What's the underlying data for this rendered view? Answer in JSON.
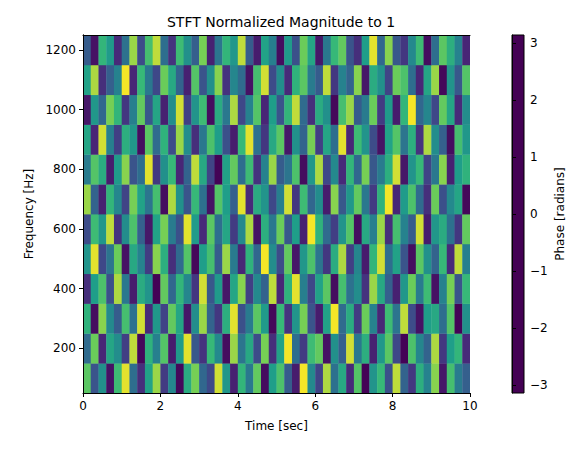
{
  "chart_data": {
    "type": "heatmap",
    "title": "STFT Normalized Magnitude to 1",
    "x_label": "Time [sec]",
    "y_label": "Frequency [Hz]",
    "xlim": [
      0,
      10
    ],
    "xticks": [
      0,
      2,
      4,
      6,
      8,
      10
    ],
    "ylim": [
      50,
      1250
    ],
    "yticks": [
      200,
      400,
      600,
      800,
      1000,
      1200
    ],
    "x_edges": [
      0,
      0.2,
      0.4,
      0.6,
      0.8,
      1,
      1.2,
      1.4,
      1.6,
      1.8,
      2,
      2.2,
      2.4,
      2.6,
      2.8,
      3,
      3.2,
      3.4,
      3.6,
      3.8,
      4,
      4.2,
      4.4,
      4.6,
      4.8,
      5,
      5.2,
      5.4,
      5.6,
      5.8,
      6,
      6.2,
      6.4,
      6.6,
      6.8,
      7,
      7.2,
      7.4,
      7.6,
      7.8,
      8,
      8.2,
      8.4,
      8.6,
      8.8,
      9,
      9.2,
      9.4,
      9.6,
      9.8,
      10
    ],
    "y_edges": [
      50,
      150,
      250,
      350,
      450,
      550,
      650,
      750,
      850,
      950,
      1050,
      1150,
      1250
    ],
    "cells": [
      [
        2.1,
        -1.3,
        0.4,
        -2.8,
        1.7,
        3.0,
        -0.6,
        -2.2,
        0.9,
        2.6,
        -1.9,
        0.1,
        -3.0,
        1.2,
        2.4,
        -0.8,
        -1.6,
        2.9,
        0.6,
        -2.5,
        1.5,
        -0.3,
        2.2,
        -2.9,
        0.8,
        1.9,
        -1.1,
        -2.6,
        3.1,
        0.2,
        -1.7,
        2.7,
        -0.5,
        1.1,
        -2.3,
        2.0,
        -3.1,
        0.5,
        1.6,
        -1.4,
        2.8,
        -0.9,
        -2.0,
        1.3,
        0.0,
        2.5,
        -2.7,
        1.8,
        -0.2,
        -1.0
      ],
      [
        -0.7,
        2.3,
        -2.4,
        1.0,
        0.3,
        -1.8,
        2.8,
        -3.0,
        1.4,
        -0.1,
        2.0,
        -2.6,
        0.7,
        3.0,
        -1.2,
        -2.1,
        1.6,
        0.2,
        -2.9,
        2.6,
        -0.4,
        1.1,
        -1.5,
        2.4,
        -2.2,
        0.9,
        3.1,
        -0.6,
        -1.9,
        1.7,
        2.2,
        -2.8,
        0.4,
        -1.0,
        2.9,
        -0.3,
        1.3,
        -2.5,
        0.6,
        2.1,
        -1.6,
        -3.1,
        1.9,
        0.1,
        -0.9,
        2.7,
        -2.0,
        0.8,
        1.5,
        -2.3
      ],
      [
        1.4,
        -2.9,
        2.5,
        0.2,
        -1.1,
        1.8,
        -0.5,
        2.9,
        -2.3,
        0.6,
        -1.7,
        2.2,
        1.0,
        -2.7,
        0.3,
        2.6,
        -0.9,
        -2.0,
        1.3,
        3.0,
        -1.4,
        -0.2,
        2.1,
        0.7,
        -3.0,
        1.6,
        -2.1,
        0.5,
        2.4,
        -1.3,
        -2.6,
        0.9,
        3.1,
        -0.7,
        1.2,
        -1.9,
        2.3,
        0.0,
        -2.4,
        1.7,
        -0.4,
        2.8,
        -1.5,
        -2.8,
        0.8,
        1.1,
        -0.6,
        2.0,
        -3.1,
        0.4
      ],
      [
        -2.2,
        0.8,
        1.9,
        -1.4,
        2.7,
        -0.3,
        -2.6,
        1.2,
        0.5,
        -3.1,
        2.2,
        -0.8,
        1.5,
        0.1,
        -2.0,
        2.9,
        -1.2,
        0.7,
        -2.7,
        1.0,
        2.5,
        -1.8,
        0.2,
        -0.9,
        2.8,
        -2.4,
        1.4,
        3.0,
        -0.1,
        -1.6,
        0.9,
        2.1,
        -2.9,
        1.8,
        -0.5,
        0.3,
        -2.1,
        2.6,
        1.1,
        -1.0,
        -2.5,
        0.6,
        2.3,
        -0.2,
        1.7,
        -2.8,
        0.0,
        2.4,
        -1.3,
        1.6
      ],
      [
        0.5,
        3.0,
        -1.6,
        -0.4,
        2.3,
        -2.8,
        1.1,
        0.0,
        -1.9,
        2.5,
        1.3,
        -2.2,
        -0.7,
        2.0,
        -3.0,
        0.8,
        1.8,
        -1.1,
        2.6,
        -0.2,
        -2.4,
        1.4,
        -0.8,
        3.1,
        0.3,
        -1.5,
        2.2,
        -2.7,
        0.6,
        1.9,
        -0.4,
        -2.0,
        1.2,
        2.7,
        -1.8,
        0.1,
        -2.6,
        1.5,
        2.9,
        -0.6,
        0.9,
        -1.3,
        -2.9,
        2.1,
        0.4,
        -0.9,
        1.6,
        -2.3,
        2.8,
        -0.1
      ],
      [
        -1.5,
        1.7,
        0.6,
        2.8,
        -2.1,
        0.3,
        1.9,
        -1.0,
        -2.7,
        0.9,
        2.4,
        -0.2,
        -1.4,
        3.0,
        0.7,
        -2.3,
        2.1,
        -0.6,
        1.0,
        -1.9,
        0.2,
        2.7,
        -2.8,
        1.3,
        -0.3,
        2.3,
        -1.2,
        0.8,
        -2.5,
        3.1,
        1.4,
        -0.7,
        -1.8,
        0.5,
        2.0,
        -2.9,
        1.1,
        -0.1,
        2.6,
        -2.2,
        1.8,
        0.0,
        -1.1,
        2.9,
        -2.6,
        0.6,
        1.2,
        -0.5,
        -2.0,
        2.2
      ],
      [
        2.6,
        -0.9,
        -2.5,
        1.5,
        0.1,
        -1.7,
        2.4,
        0.9,
        -0.4,
        1.8,
        -2.9,
        2.7,
        0.4,
        -1.3,
        1.6,
        -0.5,
        -2.8,
        2.0,
        0.8,
        -1.0,
        3.0,
        -2.3,
        1.2,
        0.5,
        -1.6,
        -0.1,
        2.9,
        -2.0,
        1.7,
        -0.8,
        0.3,
        -2.6,
        2.5,
        -1.2,
        0.6,
        2.2,
        -0.3,
        -1.9,
        1.4,
        3.1,
        -2.4,
        0.7,
        1.9,
        -0.7,
        -2.2,
        2.3,
        -1.4,
        0.2,
        1.0,
        -3.0
      ],
      [
        -0.2,
        2.0,
        1.2,
        -2.6,
        0.7,
        2.5,
        -1.3,
        -0.6,
        3.0,
        -2.0,
        0.4,
        1.6,
        -2.4,
        -0.9,
        2.8,
        1.1,
        -1.7,
        -3.1,
        0.9,
        2.2,
        -0.6,
        1.7,
        -2.1,
        0.0,
        2.6,
        -1.1,
        -0.4,
        1.9,
        -2.9,
        0.6,
        2.7,
        -1.6,
        0.2,
        -2.3,
        1.5,
        -0.8,
        2.4,
        -1.2,
        -0.2,
        1.3,
        2.9,
        -2.7,
        0.5,
        1.6,
        -1.7,
        -0.3,
        2.5,
        -2.5,
        0.8,
        1.4
      ],
      [
        1.0,
        -2.4,
        2.9,
        -0.1,
        -1.8,
        1.3,
        0.6,
        -2.9,
        2.1,
        -0.7,
        1.4,
        -1.5,
        2.6,
        0.3,
        -2.2,
        -0.3,
        1.9,
        0.8,
        -1.4,
        -2.6,
        1.6,
        3.0,
        -0.5,
        -2.0,
        1.1,
        2.1,
        -2.7,
        0.4,
        -0.9,
        2.4,
        -1.8,
        1.0,
        -0.6,
        3.0,
        -2.4,
        1.7,
        0.5,
        -1.5,
        -2.8,
        0.9,
        2.0,
        -0.4,
        1.3,
        -2.1,
        2.7,
        0.3,
        -1.0,
        -2.9,
        1.8,
        0.6
      ],
      [
        -2.7,
        0.6,
        -0.8,
        2.4,
        1.5,
        -2.0,
        -0.1,
        2.2,
        -1.2,
        1.0,
        -2.5,
        0.3,
        2.9,
        -1.8,
        0.5,
        1.7,
        -2.9,
        1.2,
        -0.3,
        2.7,
        -1.6,
        0.0,
        2.0,
        -2.4,
        0.8,
        -1.3,
        1.5,
        2.8,
        -0.7,
        -2.2,
        1.2,
        0.4,
        -3.0,
        1.8,
        2.6,
        -1.1,
        -0.2,
        2.3,
        -1.9,
        0.7,
        -2.6,
        1.5,
        3.1,
        -0.8,
        0.1,
        -1.6,
        2.2,
        1.0,
        -2.3,
        0.3
      ],
      [
        0.9,
        2.7,
        -2.2,
        -1.0,
        0.0,
        3.1,
        -2.4,
        1.6,
        -0.3,
        -1.6,
        2.3,
        1.1,
        -0.9,
        -2.5,
        2.0,
        -1.3,
        0.4,
        2.5,
        -2.1,
        0.1,
        -0.7,
        -2.8,
        1.8,
        2.9,
        -1.5,
        0.3,
        -2.3,
        1.4,
        2.1,
        -0.2,
        -1.1,
        2.8,
        -2.0,
        0.0,
        -0.9,
        2.5,
        -2.7,
        1.2,
        0.4,
        -1.7,
        2.3,
        1.9,
        -0.6,
        -2.4,
        1.0,
        2.6,
        -3.0,
        0.5,
        -1.2,
        2.0
      ],
      [
        -1.1,
        -2.8,
        1.5,
        0.7,
        -2.3,
        -0.5,
        2.6,
        -1.5,
        1.8,
        2.8,
        -0.6,
        -2.1,
        1.7,
        0.4,
        -1.0,
        2.4,
        -2.5,
        -0.4,
        1.5,
        0.6,
        2.8,
        -1.1,
        -2.6,
        0.9,
        -0.1,
        -2.9,
        0.7,
        -1.4,
        2.3,
        1.0,
        -2.7,
        -0.3,
        1.6,
        2.2,
        -1.3,
        -2.2,
        0.8,
        3.0,
        -0.8,
        2.5,
        -1.2,
        -2.0,
        0.2,
        1.7,
        -2.9,
        -0.6,
        2.1,
        1.3,
        0.0,
        -2.4
      ]
    ],
    "colorbar": {
      "label": "Phase [radians]",
      "lim": [
        -3.1416,
        3.1416
      ],
      "ticks": [
        {
          "value": -3,
          "label": "−3"
        },
        {
          "value": -2,
          "label": "−2"
        },
        {
          "value": -1,
          "label": "−1"
        },
        0,
        1,
        2,
        3
      ],
      "color": "viridis"
    }
  }
}
